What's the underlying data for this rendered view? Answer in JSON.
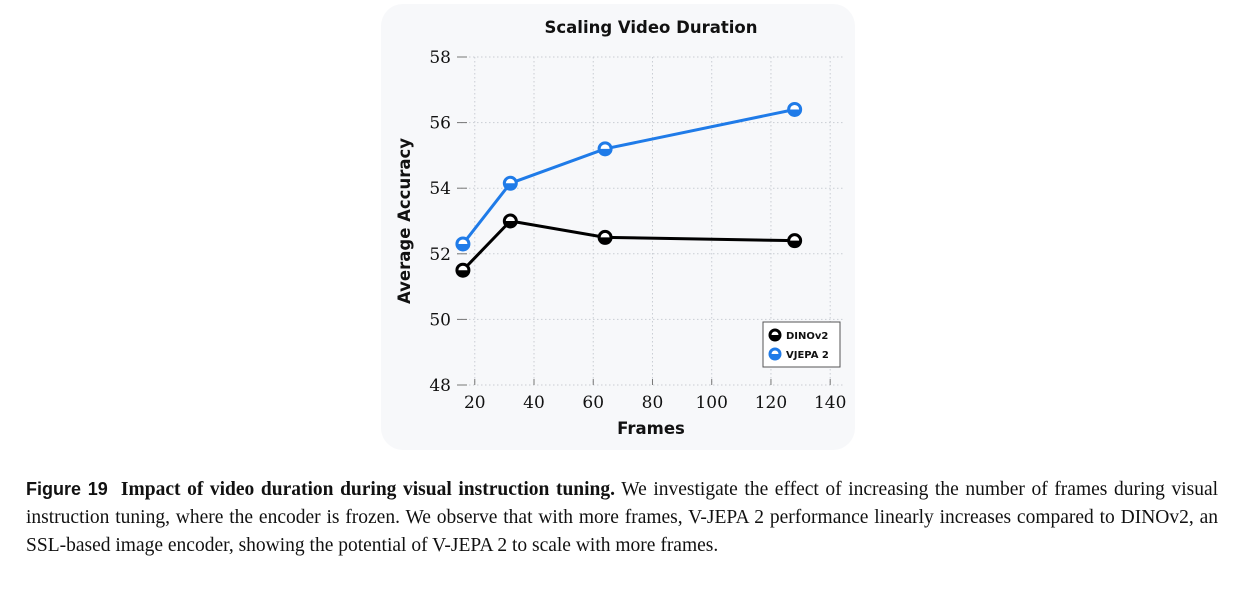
{
  "chart_data": {
    "type": "line",
    "title": "Scaling Video Duration",
    "xlabel": "Frames",
    "ylabel": "Average Accuracy",
    "xlim": [
      14,
      145
    ],
    "ylim": [
      48,
      58
    ],
    "xticks": [
      20,
      40,
      60,
      80,
      100,
      120,
      140
    ],
    "yticks": [
      48,
      50,
      52,
      54,
      56,
      58
    ],
    "grid": true,
    "legend_position": "bottom-right",
    "series": [
      {
        "name": "DINOv2",
        "color": "#000000",
        "x": [
          16,
          32,
          64,
          128
        ],
        "y": [
          51.5,
          53.0,
          52.5,
          52.4
        ]
      },
      {
        "name": "VJEPA 2",
        "color": "#1f7be8",
        "x": [
          16,
          32,
          64,
          128
        ],
        "y": [
          52.3,
          54.15,
          55.2,
          56.4
        ]
      }
    ]
  },
  "caption": {
    "label": "Figure 19",
    "title": "Impact of video duration during visual instruction tuning.",
    "text": " We investigate the effect of increasing the number of frames during visual instruction tuning, where the encoder is frozen. We observe that with more frames, V-JEPA 2 performance linearly increases compared to DINOv2, an SSL-based image encoder, showing the potential of V-JEPA 2 to scale with more frames."
  }
}
